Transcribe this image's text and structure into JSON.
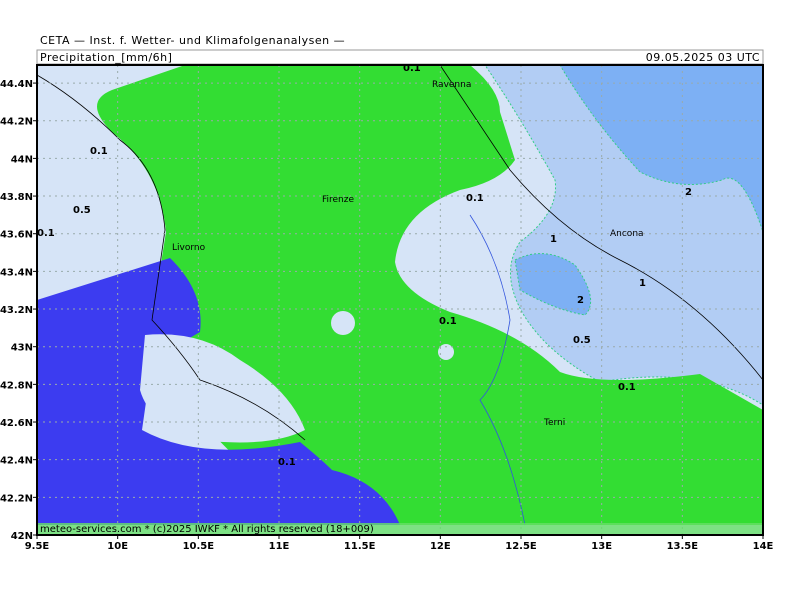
{
  "header": {
    "institute": "CETA — Inst. f. Wetter- und Klimafolgenanalysen —",
    "title": "Precipitation_[mm/6h]",
    "timestamp": "09.05.2025 03 UTC"
  },
  "map": {
    "x_ticks": [
      {
        "value": 9.5,
        "label": "9.5E"
      },
      {
        "value": 10,
        "label": "10E"
      },
      {
        "value": 10.5,
        "label": "10.5E"
      },
      {
        "value": 11,
        "label": "11E"
      },
      {
        "value": 11.5,
        "label": "11.5E"
      },
      {
        "value": 12,
        "label": "12E"
      },
      {
        "value": 12.5,
        "label": "12.5E"
      },
      {
        "value": 13,
        "label": "13E"
      },
      {
        "value": 13.5,
        "label": "13.5E"
      },
      {
        "value": 14,
        "label": "14E"
      }
    ],
    "y_ticks": [
      {
        "value": 44.4,
        "label": "44.4N"
      },
      {
        "value": 44.2,
        "label": "44.2N"
      },
      {
        "value": 44,
        "label": "44N"
      },
      {
        "value": 43.8,
        "label": "43.8N"
      },
      {
        "value": 43.6,
        "label": "43.6N"
      },
      {
        "value": 43.4,
        "label": "43.4N"
      },
      {
        "value": 43.2,
        "label": "43.2N"
      },
      {
        "value": 43,
        "label": "43N"
      },
      {
        "value": 42.8,
        "label": "42.8N"
      },
      {
        "value": 42.6,
        "label": "42.6N"
      },
      {
        "value": 42.4,
        "label": "42.4N"
      },
      {
        "value": 42.2,
        "label": "42.2N"
      },
      {
        "value": 42,
        "label": "42N"
      }
    ],
    "cities": [
      "Ravenna",
      "Firenze",
      "Livorno",
      "Ancona",
      "Terni"
    ],
    "contour_labels": [
      "0.1",
      "0.1",
      "0.5",
      "0.1",
      "0.1",
      "1",
      "2",
      "1",
      "2",
      "0.5",
      "0.1",
      "0.1",
      "0.1"
    ]
  },
  "footer": "meteo-services.com * (c)2025 IWKF * All rights reserved (18+009)"
}
